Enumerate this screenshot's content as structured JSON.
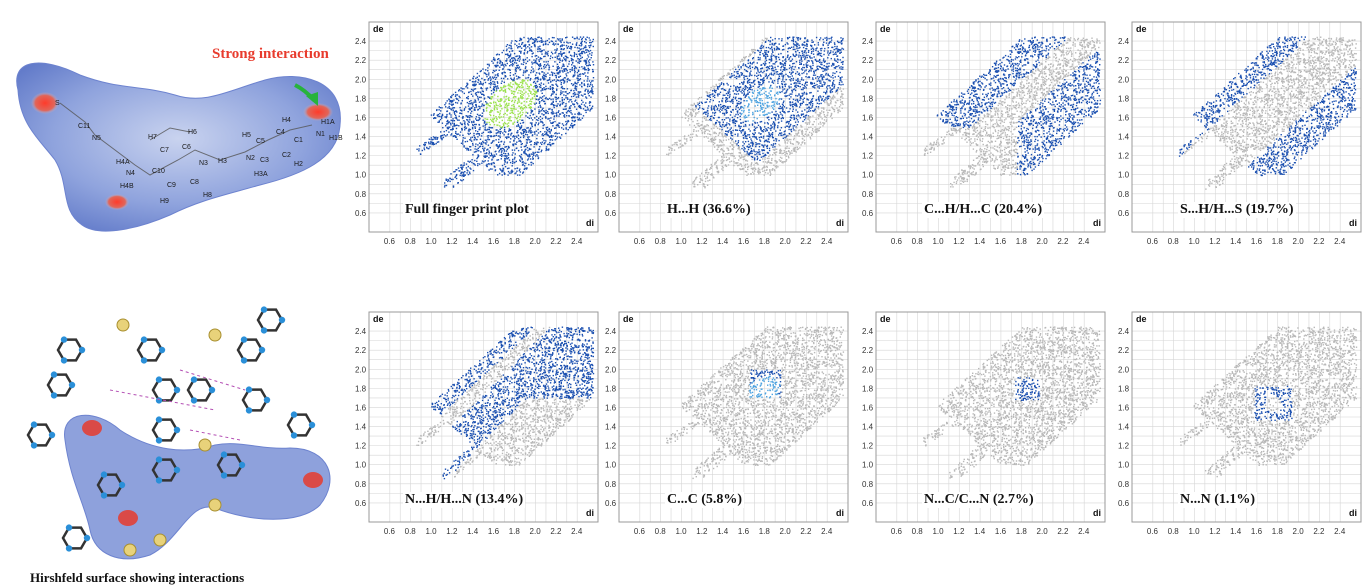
{
  "surface": {
    "callout": "Strong interaction",
    "caption": "Hirshfeld surface showing interactions",
    "atom_labels": [
      "S",
      "C11",
      "N5",
      "H7",
      "H6",
      "C7",
      "C6",
      "H4A",
      "N4",
      "C10",
      "N3",
      "H4B",
      "C9",
      "C8",
      "H9",
      "H8",
      "H5",
      "C5",
      "H4",
      "C4",
      "C1",
      "N1",
      "H1A",
      "H1B",
      "N2",
      "H3",
      "C3",
      "H3A",
      "C2",
      "H2"
    ]
  },
  "plots": [
    {
      "label": "Full finger print plot",
      "row": 0,
      "col": 0,
      "kind": "full"
    },
    {
      "label": "H...H (36.6%)",
      "row": 0,
      "col": 1,
      "kind": "HH"
    },
    {
      "label": "C...H/H...C (20.4%)",
      "row": 0,
      "col": 2,
      "kind": "CH"
    },
    {
      "label": "S...H/H...S (19.7%)",
      "row": 0,
      "col": 3,
      "kind": "SH"
    },
    {
      "label": "N...H/H...N (13.4%)",
      "row": 1,
      "col": 0,
      "kind": "NH"
    },
    {
      "label": "C...C (5.8%)",
      "row": 1,
      "col": 1,
      "kind": "CC"
    },
    {
      "label": "N...C/C...N (2.7%)",
      "row": 1,
      "col": 2,
      "kind": "NC"
    },
    {
      "label": "N...N (1.1%)",
      "row": 1,
      "col": 3,
      "kind": "NN"
    }
  ],
  "axes": {
    "xlabel": "di",
    "ylabel": "de",
    "xticks": [
      "0.6",
      "0.8",
      "1.0",
      "1.2",
      "1.4",
      "1.6",
      "1.8",
      "2.0",
      "2.2",
      "2.4"
    ],
    "yticks": [
      "2.4",
      "2.2",
      "2.0",
      "1.8",
      "1.6",
      "1.4",
      "1.2",
      "1.0",
      "0.8",
      "0.6"
    ]
  },
  "colors": {
    "blue": "#1a4fb0",
    "grey": "#b8b8b8",
    "green": "#9be24d",
    "surface": "#7f95d8",
    "red": "#e83b2d"
  }
}
